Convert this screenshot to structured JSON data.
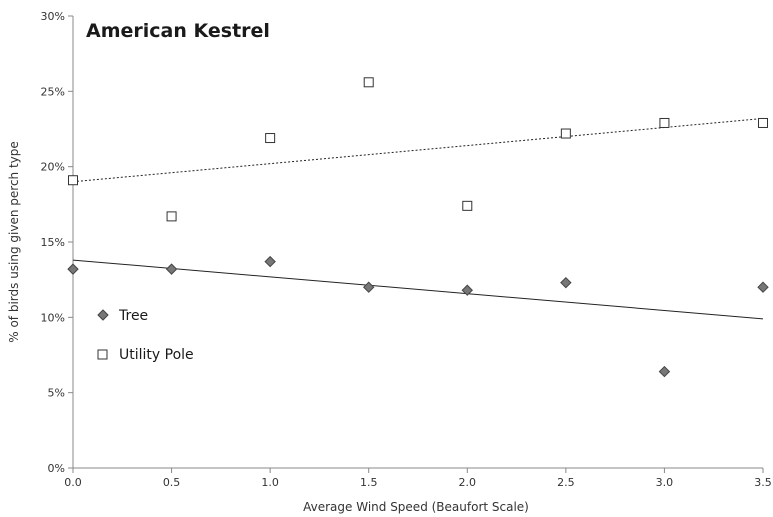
{
  "chart_data": {
    "type": "scatter",
    "title": "American Kestrel",
    "xlabel": "Average Wind Speed (Beaufort Scale)",
    "ylabel": "% of birds using given perch type",
    "xlim": [
      0,
      3.5
    ],
    "ylim": [
      0,
      30
    ],
    "x_ticks": [
      "0.0",
      "0.5",
      "1.0",
      "1.5",
      "2.0",
      "2.5",
      "3.0",
      "3.5"
    ],
    "y_ticks": [
      "0%",
      "5%",
      "10%",
      "15%",
      "20%",
      "25%",
      "30%"
    ],
    "grid": false,
    "legend_position": "left",
    "series": [
      {
        "name": "Tree",
        "marker": "diamond",
        "color": "#777777",
        "x": [
          0.0,
          0.5,
          1.0,
          1.5,
          2.0,
          2.5,
          3.0,
          3.5
        ],
        "y": [
          13.2,
          13.2,
          13.7,
          12.0,
          11.8,
          12.3,
          6.4,
          12.0
        ],
        "trendline": {
          "style": "solid",
          "x": [
            0.0,
            3.5
          ],
          "y": [
            13.8,
            9.9
          ]
        }
      },
      {
        "name": "Utility Pole",
        "marker": "square",
        "color": "#ffffff",
        "x": [
          0.0,
          0.5,
          1.0,
          1.5,
          2.0,
          2.5,
          3.0,
          3.5
        ],
        "y": [
          19.1,
          16.7,
          21.9,
          25.6,
          17.4,
          22.2,
          22.9,
          22.9
        ],
        "trendline": {
          "style": "dotted",
          "x": [
            0.0,
            3.5
          ],
          "y": [
            19.0,
            23.2
          ]
        }
      }
    ]
  }
}
